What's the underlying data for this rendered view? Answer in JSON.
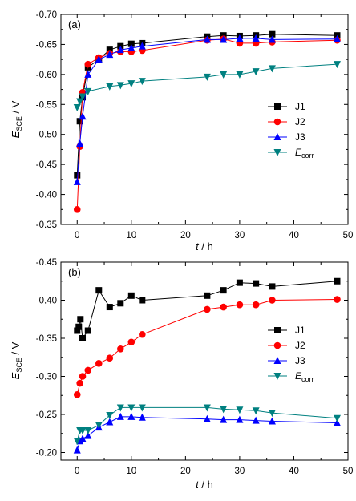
{
  "chart_data": [
    {
      "type": "line",
      "panel_label": "(a)",
      "xlabel": "t / h",
      "ylabel": "E_SCE / V",
      "xlim": [
        -3,
        50
      ],
      "ylim": [
        -0.35,
        -0.7
      ],
      "xticks": [
        0,
        10,
        20,
        30,
        40,
        50
      ],
      "yticks": [
        -0.35,
        -0.4,
        -0.45,
        -0.5,
        -0.55,
        -0.6,
        -0.65,
        -0.7
      ],
      "ytick_labels": [
        "-0.35",
        "-0.40",
        "-0.45",
        "-0.50",
        "-0.55",
        "-0.60",
        "-0.65",
        "-0.70"
      ],
      "legend_position": "center-right",
      "series": [
        {
          "name": "J1",
          "color": "#000000",
          "marker": "square",
          "x": [
            0,
            0.5,
            1,
            2,
            4,
            6,
            8,
            10,
            12,
            24,
            27,
            30,
            33,
            36,
            48
          ],
          "y": [
            -0.432,
            -0.522,
            -0.562,
            -0.612,
            -0.625,
            -0.641,
            -0.647,
            -0.651,
            -0.652,
            -0.663,
            -0.665,
            -0.664,
            -0.665,
            -0.667,
            -0.665
          ]
        },
        {
          "name": "J2",
          "color": "#ff0000",
          "marker": "circle",
          "x": [
            0,
            0.5,
            1,
            2,
            4,
            6,
            8,
            10,
            12,
            24,
            27,
            30,
            33,
            36,
            48
          ],
          "y": [
            -0.375,
            -0.48,
            -0.57,
            -0.617,
            -0.628,
            -0.635,
            -0.638,
            -0.638,
            -0.64,
            -0.657,
            -0.659,
            -0.652,
            -0.652,
            -0.654,
            -0.657
          ]
        },
        {
          "name": "J3",
          "color": "#0000ff",
          "marker": "triangle-up",
          "x": [
            0,
            0.5,
            1,
            2,
            4,
            6,
            8,
            10,
            12,
            24,
            27,
            30,
            33,
            36,
            48
          ],
          "y": [
            -0.421,
            -0.485,
            -0.53,
            -0.6,
            -0.625,
            -0.633,
            -0.641,
            -0.644,
            -0.647,
            -0.658,
            -0.658,
            -0.66,
            -0.66,
            -0.658,
            -0.659
          ]
        },
        {
          "name": "E_corr",
          "color": "#008080",
          "marker": "triangle-down",
          "x": [
            0,
            0.5,
            1,
            2,
            6,
            8,
            10,
            12,
            24,
            27,
            30,
            33,
            36,
            48
          ],
          "y": [
            -0.545,
            -0.555,
            -0.563,
            -0.572,
            -0.58,
            -0.582,
            -0.585,
            -0.589,
            -0.596,
            -0.6,
            -0.6,
            -0.605,
            -0.61,
            -0.617
          ]
        }
      ]
    },
    {
      "type": "line",
      "panel_label": "(b)",
      "xlabel": "t / h",
      "ylabel": "E_SCE / V",
      "xlim": [
        -3,
        50
      ],
      "ylim": [
        -0.19,
        -0.45
      ],
      "xticks": [
        0,
        10,
        20,
        30,
        40,
        50
      ],
      "yticks": [
        -0.2,
        -0.25,
        -0.3,
        -0.35,
        -0.4,
        -0.45
      ],
      "ytick_labels": [
        "-0.20",
        "-0.25",
        "-0.30",
        "-0.35",
        "-0.40",
        "-0.45"
      ],
      "legend_position": "center-right",
      "series": [
        {
          "name": "J1",
          "color": "#000000",
          "marker": "square",
          "x": [
            0,
            0.3,
            0.6,
            1,
            2,
            4,
            6,
            8,
            10,
            12,
            24,
            27,
            30,
            33,
            36,
            48
          ],
          "y": [
            -0.36,
            -0.365,
            -0.375,
            -0.35,
            -0.36,
            -0.413,
            -0.391,
            -0.396,
            -0.406,
            -0.4,
            -0.406,
            -0.413,
            -0.423,
            -0.422,
            -0.418,
            -0.425
          ]
        },
        {
          "name": "J2",
          "color": "#ff0000",
          "marker": "circle",
          "x": [
            0,
            0.5,
            1,
            2,
            4,
            6,
            8,
            10,
            12,
            24,
            27,
            30,
            33,
            36,
            48
          ],
          "y": [
            -0.276,
            -0.291,
            -0.3,
            -0.308,
            -0.317,
            -0.324,
            -0.336,
            -0.345,
            -0.355,
            -0.388,
            -0.391,
            -0.394,
            -0.394,
            -0.4,
            -0.401
          ]
        },
        {
          "name": "J3",
          "color": "#0000ff",
          "marker": "triangle-up",
          "x": [
            0,
            0.5,
            1,
            2,
            4,
            6,
            8,
            10,
            12,
            24,
            27,
            30,
            33,
            36,
            48
          ],
          "y": [
            -0.203,
            -0.215,
            -0.218,
            -0.222,
            -0.233,
            -0.24,
            -0.247,
            -0.247,
            -0.246,
            -0.244,
            -0.243,
            -0.243,
            -0.242,
            -0.241,
            -0.239
          ]
        },
        {
          "name": "E_corr",
          "color": "#008080",
          "marker": "triangle-down",
          "x": [
            0,
            0.5,
            1,
            2,
            4,
            6,
            8,
            10,
            12,
            24,
            27,
            30,
            33,
            36,
            48
          ],
          "y": [
            -0.215,
            -0.229,
            -0.229,
            -0.229,
            -0.236,
            -0.249,
            -0.259,
            -0.259,
            -0.259,
            -0.259,
            -0.257,
            -0.256,
            -0.255,
            -0.252,
            -0.245
          ]
        }
      ]
    }
  ]
}
